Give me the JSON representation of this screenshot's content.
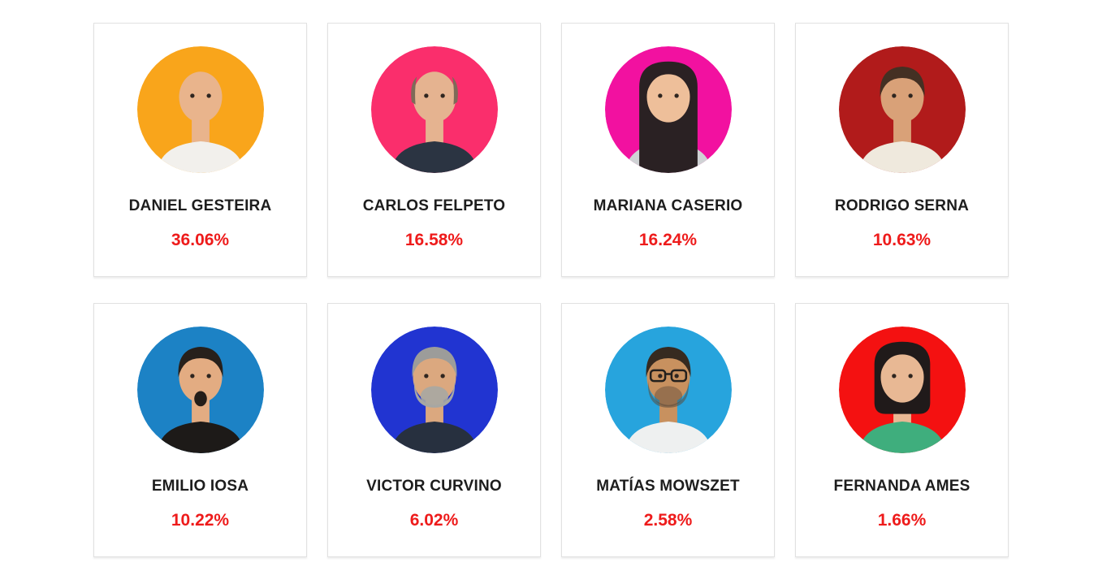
{
  "page": {
    "background": "#ffffff",
    "name_color": "#1d1d1d",
    "percentage_color": "#ee1b1b",
    "card_border_color": "#e1e1e1"
  },
  "candidates": [
    {
      "name": "DANIEL GESTEIRA",
      "percentage": "36.06%",
      "avatar": {
        "icon": "person-icon",
        "background": "#f9a51b",
        "skin": "#e9b48c",
        "hair_style": "bald",
        "hair_color": null,
        "beard": null,
        "glasses": false,
        "shirt": "#f2f0ec"
      }
    },
    {
      "name": "CARLOS FELPETO",
      "percentage": "16.58%",
      "avatar": {
        "icon": "person-icon",
        "background": "#fa2e6c",
        "skin": "#e5b390",
        "hair_style": "balding",
        "hair_color": "#7d6b58",
        "beard": "#948471",
        "glasses": false,
        "shirt": "#2b3442"
      }
    },
    {
      "name": "MARIANA CASERIO",
      "percentage": "16.24%",
      "avatar": {
        "icon": "person-icon",
        "background": "#f211a0",
        "skin": "#eebf9a",
        "hair_style": "long",
        "hair_color": "#2a2123",
        "beard": null,
        "glasses": false,
        "shirt": "#cfd2d4"
      }
    },
    {
      "name": "RODRIGO SERNA",
      "percentage": "10.63%",
      "avatar": {
        "icon": "person-icon",
        "background": "#b11b1b",
        "skin": "#d9a178",
        "hair_style": "short",
        "hair_color": "#443023",
        "beard": null,
        "glasses": false,
        "shirt": "#efe9dd"
      }
    },
    {
      "name": "EMILIO IOSA",
      "percentage": "10.22%",
      "avatar": {
        "icon": "person-icon",
        "background": "#1c82c5",
        "skin": "#e3ac82",
        "hair_style": "short",
        "hair_color": "#27201b",
        "beard": "goatee",
        "beard_color": "#241d18",
        "glasses": false,
        "shirt": "#1d1a18"
      }
    },
    {
      "name": "VICTOR CURVINO",
      "percentage": "6.02%",
      "avatar": {
        "icon": "person-icon",
        "background": "#2134d1",
        "skin": "#dba87f",
        "hair_style": "short",
        "hair_color": "#9c9c9a",
        "beard": "full",
        "beard_color": "#a7a7a3",
        "glasses": false,
        "shirt": "#27303f"
      }
    },
    {
      "name": "MATÍAS MOWSZET",
      "percentage": "2.58%",
      "avatar": {
        "icon": "person-icon",
        "background": "#27a4dd",
        "skin": "#c8915f",
        "hair_style": "short",
        "hair_color": "#362a20",
        "beard": "stubble",
        "beard_color": "#5b4a3a",
        "glasses": true,
        "shirt": "#eef0f0"
      }
    },
    {
      "name": "FERNANDA AMES",
      "percentage": "1.66%",
      "avatar": {
        "icon": "person-icon",
        "background": "#f41111",
        "skin": "#e8b894",
        "hair_style": "bob",
        "hair_color": "#201a1a",
        "beard": null,
        "glasses": false,
        "shirt": "#3fae7d"
      }
    }
  ]
}
